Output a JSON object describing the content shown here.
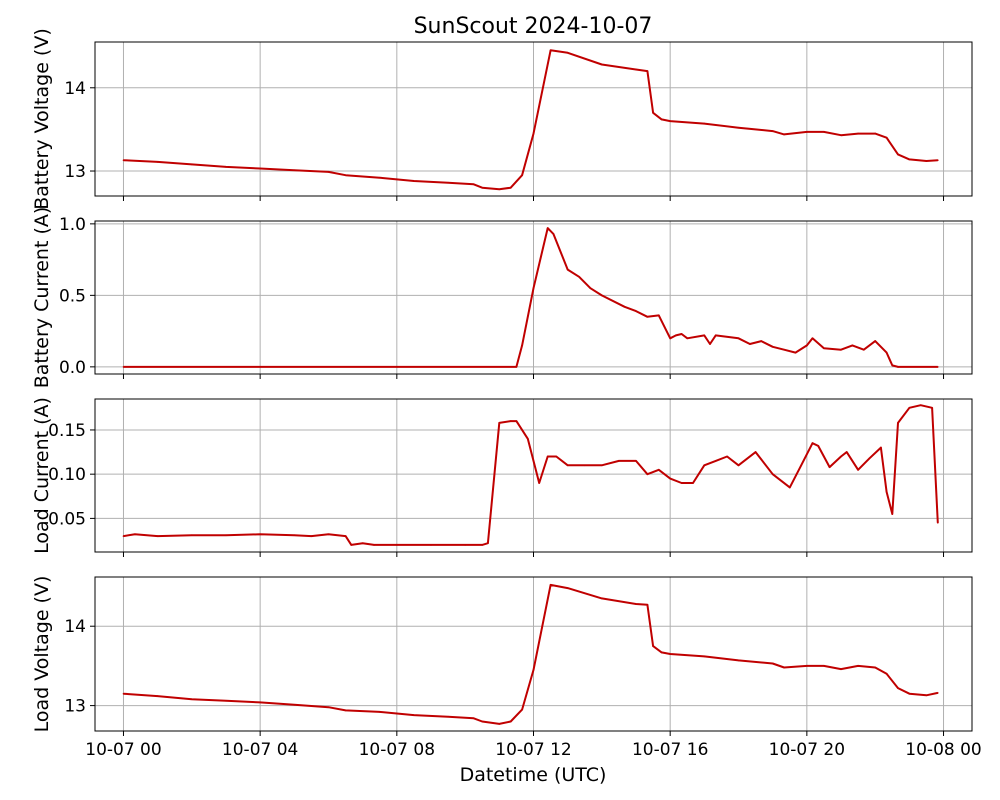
{
  "figure": {
    "title": "SunScout 2024-10-07",
    "xlabel": "Datetime (UTC)",
    "colors": {
      "line": "#c00000",
      "grid": "#b0b0b0",
      "axes": "#000000"
    }
  },
  "chart_data": [
    {
      "type": "line",
      "ylabel": "Battery Voltage (V)",
      "xlim": [
        "2024-10-06T23:10",
        "2024-10-08T00:50"
      ],
      "xticks": [
        "10-07 00",
        "10-07 04",
        "10-07 08",
        "10-07 12",
        "10-07 16",
        "10-07 20",
        "10-08 00"
      ],
      "ylim": [
        12.7,
        14.55
      ],
      "yticks": [
        "13",
        "14"
      ],
      "ytick_values": [
        13,
        14
      ],
      "grid": true,
      "series": [
        {
          "x": [
            "2024-10-07T00:00",
            "2024-10-07T01:00",
            "2024-10-07T02:00",
            "2024-10-07T03:00",
            "2024-10-07T04:00",
            "2024-10-07T05:00",
            "2024-10-07T06:00",
            "2024-10-07T06:30",
            "2024-10-07T07:30",
            "2024-10-07T08:30",
            "2024-10-07T09:30",
            "2024-10-07T10:15",
            "2024-10-07T10:30",
            "2024-10-07T11:00",
            "2024-10-07T11:20",
            "2024-10-07T11:40",
            "2024-10-07T12:00",
            "2024-10-07T12:30",
            "2024-10-07T13:00",
            "2024-10-07T14:00",
            "2024-10-07T15:00",
            "2024-10-07T15:20",
            "2024-10-07T15:30",
            "2024-10-07T15:45",
            "2024-10-07T16:00",
            "2024-10-07T17:00",
            "2024-10-07T18:00",
            "2024-10-07T19:00",
            "2024-10-07T19:20",
            "2024-10-07T20:00",
            "2024-10-07T20:30",
            "2024-10-07T21:00",
            "2024-10-07T21:30",
            "2024-10-07T22:00",
            "2024-10-07T22:20",
            "2024-10-07T22:40",
            "2024-10-07T23:00",
            "2024-10-07T23:30",
            "2024-10-07T23:50"
          ],
          "y": [
            13.13,
            13.11,
            13.08,
            13.05,
            13.03,
            13.01,
            12.99,
            12.95,
            12.92,
            12.88,
            12.86,
            12.84,
            12.8,
            12.78,
            12.8,
            12.95,
            13.45,
            14.45,
            14.42,
            14.28,
            14.22,
            14.2,
            13.7,
            13.62,
            13.6,
            13.57,
            13.52,
            13.48,
            13.44,
            13.47,
            13.47,
            13.43,
            13.45,
            13.45,
            13.4,
            13.2,
            13.14,
            13.12,
            13.13
          ]
        }
      ]
    },
    {
      "type": "line",
      "ylabel": "Battery Current (A)",
      "xlim": [
        "2024-10-06T23:10",
        "2024-10-08T00:50"
      ],
      "xticks": [
        "10-07 00",
        "10-07 04",
        "10-07 08",
        "10-07 12",
        "10-07 16",
        "10-07 20",
        "10-08 00"
      ],
      "ylim": [
        -0.05,
        1.02
      ],
      "yticks": [
        "0.0",
        "0.5",
        "1.0"
      ],
      "ytick_values": [
        0.0,
        0.5,
        1.0
      ],
      "grid": true,
      "series": [
        {
          "x": [
            "2024-10-07T00:00",
            "2024-10-07T11:30",
            "2024-10-07T11:40",
            "2024-10-07T12:00",
            "2024-10-07T12:25",
            "2024-10-07T12:35",
            "2024-10-07T13:00",
            "2024-10-07T13:20",
            "2024-10-07T13:40",
            "2024-10-07T14:00",
            "2024-10-07T14:40",
            "2024-10-07T15:00",
            "2024-10-07T15:20",
            "2024-10-07T15:40",
            "2024-10-07T16:00",
            "2024-10-07T16:10",
            "2024-10-07T16:20",
            "2024-10-07T16:30",
            "2024-10-07T17:00",
            "2024-10-07T17:10",
            "2024-10-07T17:20",
            "2024-10-07T18:00",
            "2024-10-07T18:20",
            "2024-10-07T18:40",
            "2024-10-07T19:00",
            "2024-10-07T19:20",
            "2024-10-07T19:40",
            "2024-10-07T20:00",
            "2024-10-07T20:10",
            "2024-10-07T20:30",
            "2024-10-07T21:00",
            "2024-10-07T21:20",
            "2024-10-07T21:40",
            "2024-10-07T22:00",
            "2024-10-07T22:20",
            "2024-10-07T22:30",
            "2024-10-07T22:40",
            "2024-10-07T23:50"
          ],
          "y": [
            0.0,
            0.0,
            0.15,
            0.55,
            0.97,
            0.93,
            0.68,
            0.63,
            0.55,
            0.5,
            0.42,
            0.39,
            0.35,
            0.36,
            0.2,
            0.22,
            0.23,
            0.2,
            0.22,
            0.16,
            0.22,
            0.2,
            0.16,
            0.18,
            0.14,
            0.12,
            0.1,
            0.15,
            0.2,
            0.13,
            0.12,
            0.15,
            0.12,
            0.18,
            0.1,
            0.01,
            0.0,
            0.0
          ]
        }
      ]
    },
    {
      "type": "line",
      "ylabel": "Load Current (A)",
      "xlim": [
        "2024-10-06T23:10",
        "2024-10-08T00:50"
      ],
      "xticks": [
        "10-07 00",
        "10-07 04",
        "10-07 08",
        "10-07 12",
        "10-07 16",
        "10-07 20",
        "10-08 00"
      ],
      "ylim": [
        0.012,
        0.185
      ],
      "yticks": [
        "0.05",
        "0.10",
        "0.15"
      ],
      "ytick_values": [
        0.05,
        0.1,
        0.15
      ],
      "grid": true,
      "series": [
        {
          "x": [
            "2024-10-07T00:00",
            "2024-10-07T00:20",
            "2024-10-07T01:00",
            "2024-10-07T02:00",
            "2024-10-07T03:00",
            "2024-10-07T04:00",
            "2024-10-07T05:00",
            "2024-10-07T05:30",
            "2024-10-07T06:00",
            "2024-10-07T06:30",
            "2024-10-07T06:40",
            "2024-10-07T07:00",
            "2024-10-07T07:20",
            "2024-10-07T08:00",
            "2024-10-07T09:00",
            "2024-10-07T10:00",
            "2024-10-07T10:30",
            "2024-10-07T10:40",
            "2024-10-07T11:00",
            "2024-10-07T11:20",
            "2024-10-07T11:30",
            "2024-10-07T11:50",
            "2024-10-07T12:10",
            "2024-10-07T12:25",
            "2024-10-07T12:40",
            "2024-10-07T13:00",
            "2024-10-07T13:30",
            "2024-10-07T14:00",
            "2024-10-07T14:30",
            "2024-10-07T15:00",
            "2024-10-07T15:20",
            "2024-10-07T15:40",
            "2024-10-07T16:00",
            "2024-10-07T16:20",
            "2024-10-07T16:40",
            "2024-10-07T17:00",
            "2024-10-07T17:20",
            "2024-10-07T17:40",
            "2024-10-07T18:00",
            "2024-10-07T18:30",
            "2024-10-07T19:00",
            "2024-10-07T19:30",
            "2024-10-07T19:50",
            "2024-10-07T20:10",
            "2024-10-07T20:20",
            "2024-10-07T20:40",
            "2024-10-07T21:00",
            "2024-10-07T21:10",
            "2024-10-07T21:30",
            "2024-10-07T21:50",
            "2024-10-07T22:10",
            "2024-10-07T22:20",
            "2024-10-07T22:30",
            "2024-10-07T22:40",
            "2024-10-07T23:00",
            "2024-10-07T23:20",
            "2024-10-07T23:40",
            "2024-10-07T23:50"
          ],
          "y": [
            0.03,
            0.032,
            0.03,
            0.031,
            0.031,
            0.032,
            0.031,
            0.03,
            0.032,
            0.03,
            0.02,
            0.022,
            0.02,
            0.02,
            0.02,
            0.02,
            0.02,
            0.022,
            0.158,
            0.16,
            0.16,
            0.14,
            0.09,
            0.12,
            0.12,
            0.11,
            0.11,
            0.11,
            0.115,
            0.115,
            0.1,
            0.105,
            0.095,
            0.09,
            0.09,
            0.11,
            0.115,
            0.12,
            0.11,
            0.125,
            0.1,
            0.085,
            0.11,
            0.135,
            0.132,
            0.108,
            0.12,
            0.125,
            0.105,
            0.118,
            0.13,
            0.08,
            0.055,
            0.158,
            0.175,
            0.178,
            0.175,
            0.045
          ]
        }
      ]
    },
    {
      "type": "line",
      "ylabel": "Load Voltage (V)",
      "xlim": [
        "2024-10-06T23:10",
        "2024-10-08T00:50"
      ],
      "xticks": [
        "10-07 00",
        "10-07 04",
        "10-07 08",
        "10-07 12",
        "10-07 16",
        "10-07 20",
        "10-08 00"
      ],
      "ylim": [
        12.68,
        14.62
      ],
      "yticks": [
        "13",
        "14"
      ],
      "ytick_values": [
        13,
        14
      ],
      "grid": true,
      "series": [
        {
          "x": [
            "2024-10-07T00:00",
            "2024-10-07T01:00",
            "2024-10-07T02:00",
            "2024-10-07T03:00",
            "2024-10-07T04:00",
            "2024-10-07T05:00",
            "2024-10-07T06:00",
            "2024-10-07T06:30",
            "2024-10-07T07:30",
            "2024-10-07T08:30",
            "2024-10-07T09:30",
            "2024-10-07T10:15",
            "2024-10-07T10:30",
            "2024-10-07T11:00",
            "2024-10-07T11:20",
            "2024-10-07T11:40",
            "2024-10-07T12:00",
            "2024-10-07T12:30",
            "2024-10-07T13:00",
            "2024-10-07T14:00",
            "2024-10-07T15:00",
            "2024-10-07T15:20",
            "2024-10-07T15:30",
            "2024-10-07T15:45",
            "2024-10-07T16:00",
            "2024-10-07T17:00",
            "2024-10-07T18:00",
            "2024-10-07T19:00",
            "2024-10-07T19:20",
            "2024-10-07T20:00",
            "2024-10-07T20:30",
            "2024-10-07T21:00",
            "2024-10-07T21:30",
            "2024-10-07T22:00",
            "2024-10-07T22:20",
            "2024-10-07T22:40",
            "2024-10-07T23:00",
            "2024-10-07T23:30",
            "2024-10-07T23:50"
          ],
          "y": [
            13.15,
            13.12,
            13.08,
            13.06,
            13.04,
            13.01,
            12.98,
            12.94,
            12.92,
            12.88,
            12.86,
            12.84,
            12.8,
            12.77,
            12.8,
            12.95,
            13.45,
            14.52,
            14.48,
            14.35,
            14.28,
            14.27,
            13.75,
            13.67,
            13.65,
            13.62,
            13.57,
            13.53,
            13.48,
            13.5,
            13.5,
            13.46,
            13.5,
            13.48,
            13.4,
            13.22,
            13.15,
            13.13,
            13.16
          ]
        }
      ]
    }
  ]
}
